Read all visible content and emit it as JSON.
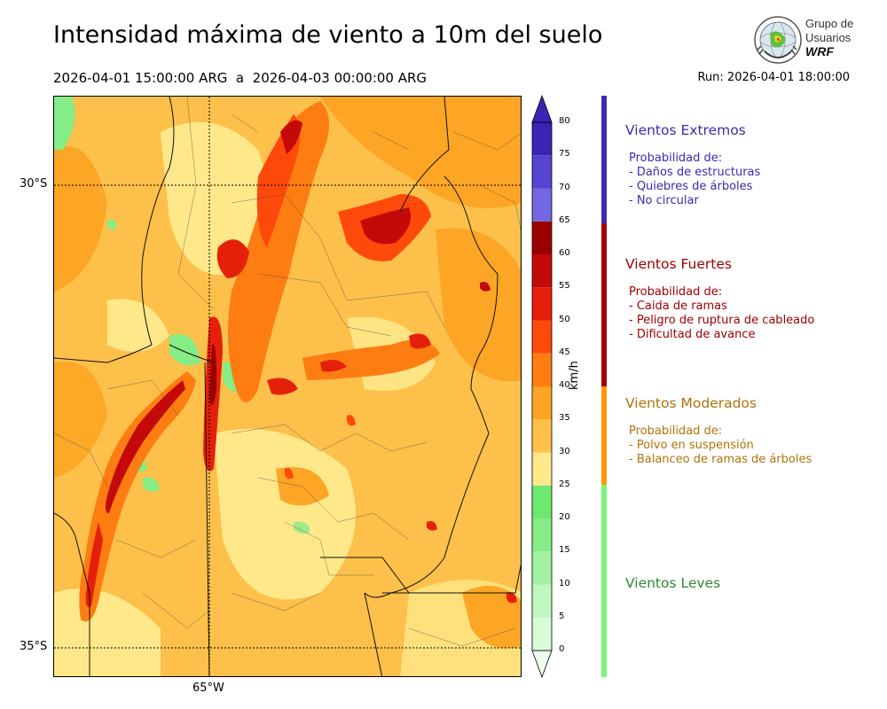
{
  "header": {
    "title": "Intensidad máxima de viento a 10m del suelo",
    "period": "2026-04-01 15:00:00 ARG  a  2026-04-03 00:00:00 ARG",
    "run": "Run: 2026-04-01 18:00:00"
  },
  "logo": {
    "line1": "Grupo de",
    "line2": "Usuarios",
    "line3": "WRF"
  },
  "map": {
    "lat_labels": [
      "30°S",
      "35°S"
    ],
    "lon_labels": [
      "65°W"
    ]
  },
  "colorbar": {
    "unit": "km/h",
    "ticks": [
      "0",
      "5",
      "10",
      "15",
      "20",
      "25",
      "30",
      "35",
      "40",
      "45",
      "50",
      "55",
      "60",
      "65",
      "70",
      "75",
      "80"
    ],
    "colors": [
      "#f0fff0",
      "#d9fcd9",
      "#bff7bf",
      "#a3f2a3",
      "#86ec86",
      "#6fe86f",
      "#fee88a",
      "#fdc04a",
      "#fda524",
      "#fd7d12",
      "#fd4a0a",
      "#e5200a",
      "#c40a08",
      "#9a0000",
      "#7267e0",
      "#5545d0",
      "#3a23b5"
    ]
  },
  "categories": [
    {
      "title": "Vientos Extremos",
      "color": "#3c2bb0",
      "intro": "Probabilidad de:",
      "items": [
        "- Daños de estructuras",
        "- Quiebres de árboles",
        "- No circular"
      ]
    },
    {
      "title": "Vientos Fuertes",
      "color": "#a00000",
      "intro": "Probabilidad de:",
      "items": [
        "- Caida de ramas",
        "- Peligro de ruptura de cableado",
        "- Dificultad de avance"
      ]
    },
    {
      "title": "Vientos Moderados",
      "color": "#b0720a",
      "intro": "Probabilidad de:",
      "items": [
        "- Polvo en suspensión",
        "- Balanceo de ramas de árboles"
      ]
    },
    {
      "title": "Vientos Leves",
      "color": "#2e8b2e",
      "intro": "",
      "items": []
    }
  ],
  "category_bar_colors": [
    "#3c2bb0",
    "#a00000",
    "#ff9900",
    "#7cf57c"
  ]
}
